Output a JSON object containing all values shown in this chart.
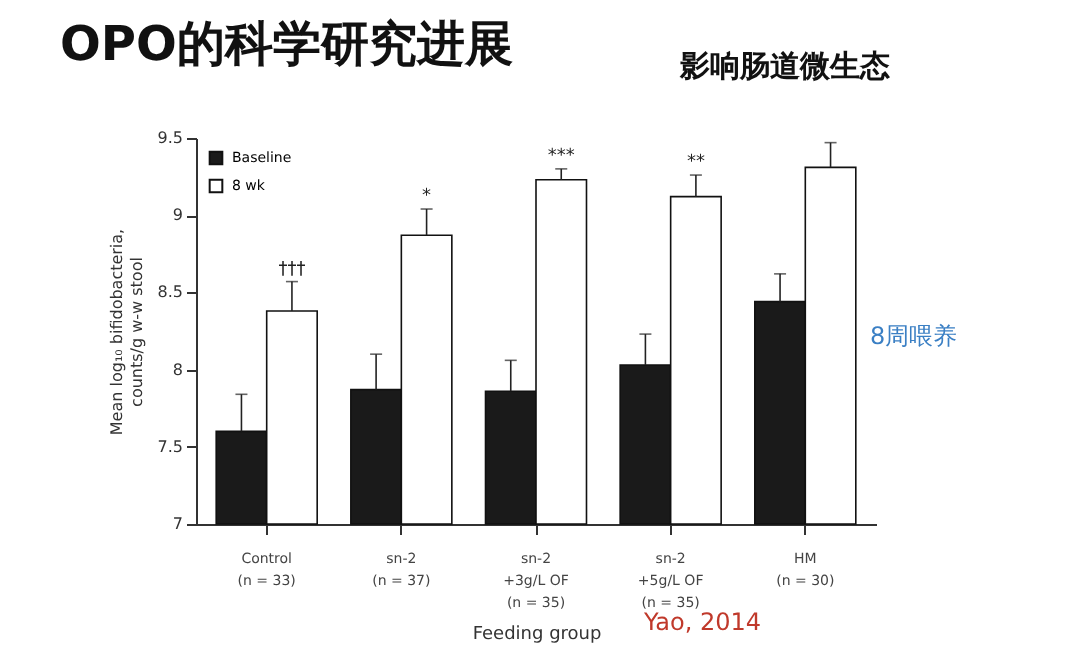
{
  "chart_data": {
    "type": "bar",
    "title": "OPO的科学研究进展",
    "subtitle": "影响肠道微生态",
    "xlabel": "Feeding group",
    "ylabel": "Mean log₁₀ bifidobacteria, counts/g w-w stool",
    "categories": [
      "Control\n\n(n = 33)",
      "sn-2\n\n(n = 37)",
      "sn-2\n+3g/L OF\n(n = 35)",
      "sn-2\n+5g/L OF\n(n = 35)",
      "HM\n\n(n = 30)"
    ],
    "series": [
      {
        "name": "Baseline",
        "color": "#1a1a1a",
        "values": [
          7.6,
          7.87,
          7.86,
          8.03,
          8.44
        ],
        "errors": [
          [
            7.6,
            7.84
          ],
          [
            7.87,
            8.1
          ],
          [
            7.86,
            8.06
          ],
          [
            8.03,
            8.23
          ],
          [
            8.44,
            8.62
          ]
        ]
      },
      {
        "name": "8 wk",
        "color": "#ffffff",
        "values": [
          8.38,
          8.87,
          9.23,
          9.12,
          9.31
        ],
        "errors": [
          [
            8.38,
            8.57
          ],
          [
            8.87,
            9.04
          ],
          [
            9.23,
            9.3
          ],
          [
            9.12,
            9.26
          ],
          [
            9.31,
            9.47
          ]
        ]
      }
    ],
    "ylim": [
      7,
      9.5
    ],
    "yticks": [
      7,
      7.5,
      8,
      8.5,
      9,
      9.5
    ],
    "grid": false,
    "legend": "top left",
    "annotations": [
      "†††",
      "*",
      "***",
      "**",
      "8周喂养",
      "Yao, 2014"
    ]
  }
}
